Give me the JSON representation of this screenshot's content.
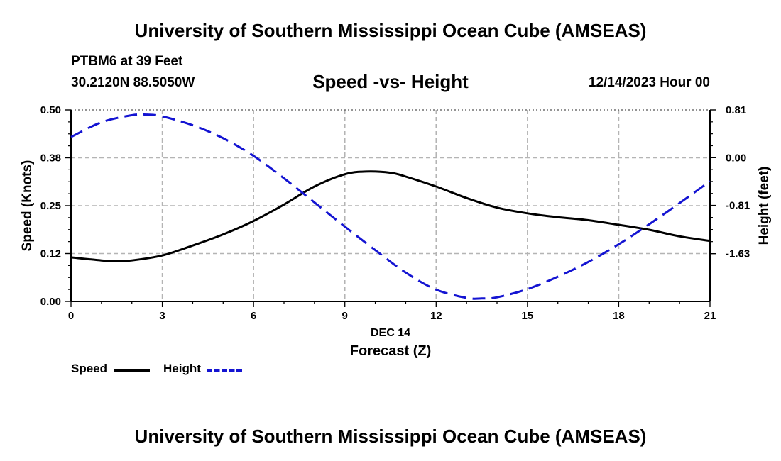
{
  "header": {
    "title_top": "University of Southern Mississippi Ocean Cube (AMSEAS)",
    "station": "PTBM6 at 39 Feet",
    "coords": "30.2120N  88.5050W",
    "chart_title": "Speed -vs- Height",
    "datetime": "12/14/2023 Hour 00"
  },
  "footer": {
    "title_bottom": "University of Southern Mississippi Ocean Cube (AMSEAS)"
  },
  "legend": {
    "speed_label": "Speed",
    "height_label": "Height"
  },
  "colors": {
    "speed": "#000000",
    "height": "#1414d2",
    "grid": "#b4b4b4"
  },
  "chart_data": {
    "type": "line",
    "title": "Speed -vs- Height",
    "xlabel": "Forecast (Z)",
    "xlabel_date": "DEC 14",
    "ylabel_left": "Speed (Knots)",
    "ylabel_right": "Height (feet)",
    "x_ticks": [
      "0",
      "3",
      "6",
      "9",
      "12",
      "15",
      "18",
      "21"
    ],
    "x_tick_values": [
      0,
      3,
      6,
      9,
      12,
      15,
      18,
      21
    ],
    "xlim": [
      0,
      21
    ],
    "y_left_ticks": [
      "0.00",
      "0.12",
      "0.25",
      "0.38",
      "0.50"
    ],
    "y_left_tick_values": [
      0,
      0.125,
      0.25,
      0.375,
      0.5
    ],
    "ylim_left": [
      0,
      0.5
    ],
    "y_right_ticks": [
      "0.81",
      "0.00",
      "-0.81",
      "-1.63"
    ],
    "y_right_tick_values": [
      0.81,
      0.0,
      -0.81,
      -1.63
    ],
    "ylim_right": [
      -2.44,
      0.81
    ],
    "grid": true,
    "series": [
      {
        "name": "Speed",
        "axis": "left",
        "style": "solid",
        "x": [
          0,
          1,
          1.5,
          2,
          3,
          4,
          5,
          6,
          7,
          8,
          9,
          9.7,
          10.5,
          11,
          12,
          13,
          14,
          15,
          16,
          17,
          18,
          19,
          20,
          21
        ],
        "values": [
          0.115,
          0.107,
          0.105,
          0.107,
          0.12,
          0.146,
          0.175,
          0.21,
          0.253,
          0.3,
          0.332,
          0.339,
          0.336,
          0.326,
          0.3,
          0.27,
          0.245,
          0.23,
          0.22,
          0.212,
          0.2,
          0.187,
          0.17,
          0.158
        ]
      },
      {
        "name": "Height",
        "axis": "right",
        "style": "dashed",
        "x": [
          0,
          1,
          2,
          2.5,
          3,
          4,
          5,
          6,
          7,
          8,
          9,
          10,
          11,
          12,
          13,
          13.5,
          14,
          15,
          16,
          17,
          18,
          19,
          20,
          21
        ],
        "values": [
          0.35,
          0.6,
          0.72,
          0.73,
          0.7,
          0.55,
          0.33,
          0.03,
          -0.35,
          -0.76,
          -1.17,
          -1.57,
          -1.95,
          -2.24,
          -2.38,
          -2.39,
          -2.37,
          -2.23,
          -2.02,
          -1.77,
          -1.47,
          -1.13,
          -0.77,
          -0.4
        ]
      }
    ]
  }
}
